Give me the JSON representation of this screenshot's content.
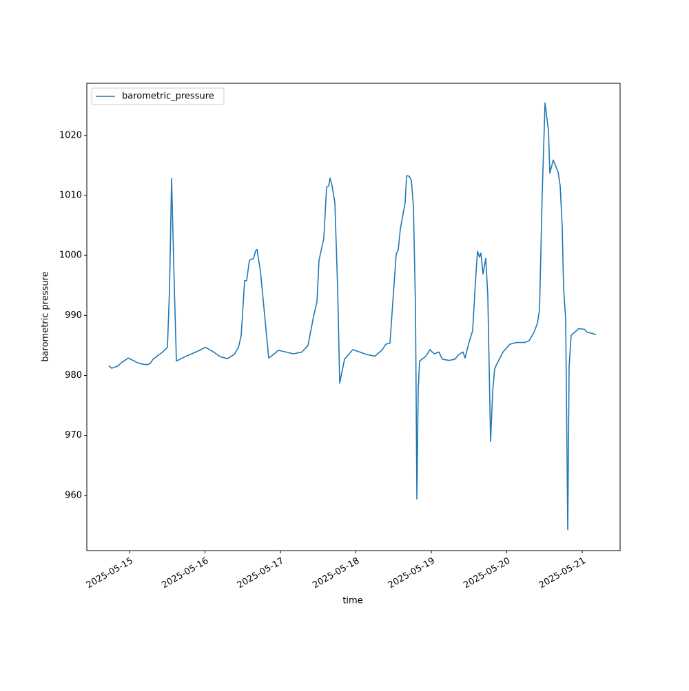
{
  "chart_data": {
    "type": "line",
    "xlabel": "time",
    "ylabel": "barometric pressure",
    "legend": "upper left",
    "xlim": [
      "2025-05-14 10:24",
      "2025-05-21 12:03"
    ],
    "xticks": [
      "2025-05-15",
      "2025-05-16",
      "2025-05-17",
      "2025-05-18",
      "2025-05-19",
      "2025-05-20",
      "2025-05-21"
    ],
    "ylim": [
      950.8,
      1028.7
    ],
    "yticks": [
      960,
      970,
      980,
      990,
      1000,
      1010,
      1020
    ],
    "x": [
      "2025-05-14 17:25",
      "2025-05-14 18:18",
      "2025-05-14 20:03",
      "2025-05-14 21:22",
      "2025-05-14 23:34",
      "2025-05-15 02:38",
      "2025-05-15 03:57",
      "2025-05-15 05:42",
      "2025-05-15 06:35",
      "2025-05-15 07:27",
      "2025-05-15 10:31",
      "2025-05-15 12:03",
      "2025-05-15 12:43",
      "2025-05-15 13:22",
      "2025-05-15 14:15",
      "2025-05-15 14:54",
      "2025-05-15 17:58",
      "2025-05-15 20:10",
      "2025-05-15 22:21",
      "2025-05-16 00:07",
      "2025-05-16 02:44",
      "2025-05-16 04:56",
      "2025-05-16 07:07",
      "2025-05-16 09:19",
      "2025-05-16 10:38",
      "2025-05-16 11:30",
      "2025-05-16 12:36",
      "2025-05-16 13:15",
      "2025-05-16 14:08",
      "2025-05-16 15:27",
      "2025-05-16 16:07",
      "2025-05-16 16:33",
      "2025-05-16 17:39",
      "2025-05-16 20:16",
      "2025-05-16 22:02",
      "2025-05-16 23:21",
      "2025-05-17 01:45",
      "2025-05-17 04:10",
      "2025-05-17 06:48",
      "2025-05-17 08:46",
      "2025-05-17 10:31",
      "2025-05-17 11:37",
      "2025-05-17 12:16",
      "2025-05-17 13:48",
      "2025-05-17 14:41",
      "2025-05-17 15:21",
      "2025-05-17 15:47",
      "2025-05-17 16:26",
      "2025-05-17 17:19",
      "2025-05-17 18:12",
      "2025-05-17 18:51",
      "2025-05-17 20:23",
      "2025-05-17 23:01",
      "2025-05-18 01:12",
      "2025-05-18 03:24",
      "2025-05-18 06:02",
      "2025-05-18 08:26",
      "2025-05-18 09:32",
      "2025-05-18 10:51",
      "2025-05-18 11:30",
      "2025-05-18 12:49",
      "2025-05-18 13:29",
      "2025-05-18 14:08",
      "2025-05-18 15:40",
      "2025-05-18 16:07",
      "2025-05-18 16:59",
      "2025-05-18 17:39",
      "2025-05-18 18:18",
      "2025-05-18 18:58",
      "2025-05-18 19:24",
      "2025-05-18 19:50",
      "2025-05-18 20:16",
      "2025-05-18 22:15",
      "2025-05-18 23:34",
      "2025-05-19 00:53",
      "2025-05-19 02:25",
      "2025-05-19 03:31",
      "2025-05-19 05:42",
      "2025-05-19 07:27",
      "2025-05-19 08:46",
      "2025-05-19 10:05",
      "2025-05-19 10:44",
      "2025-05-19 11:50",
      "2025-05-19 13:09",
      "2025-05-19 14:02",
      "2025-05-19 14:41",
      "2025-05-19 15:20",
      "2025-05-19 15:47",
      "2025-05-19 16:26",
      "2025-05-19 17:19",
      "2025-05-19 17:58",
      "2025-05-19 18:51",
      "2025-05-19 19:31",
      "2025-05-19 20:10",
      "2025-05-19 22:47",
      "2025-05-20 00:59",
      "2025-05-20 03:11",
      "2025-05-20 05:49",
      "2025-05-20 07:07",
      "2025-05-20 08:40",
      "2025-05-20 09:45",
      "2025-05-20 10:25",
      "2025-05-20 11:17",
      "2025-05-20 12:10",
      "2025-05-20 13:16",
      "2025-05-20 13:42",
      "2025-05-20 14:47",
      "2025-05-20 16:20",
      "2025-05-20 16:59",
      "2025-05-20 17:38",
      "2025-05-20 18:05",
      "2025-05-20 18:44",
      "2025-05-20 19:24",
      "2025-05-20 19:50",
      "2025-05-20 20:29",
      "2025-05-20 21:49",
      "2025-05-20 22:54",
      "2025-05-21 00:40",
      "2025-05-21 01:32",
      "2025-05-21 03:17",
      "2025-05-21 04:23"
    ],
    "series": [
      {
        "name": "barometric_pressure",
        "color": "#1f77b4",
        "values": [
          981.6,
          981.2,
          981.5,
          982.1,
          982.9,
          982.1,
          981.9,
          981.8,
          982.0,
          982.7,
          983.9,
          984.7,
          994.4,
          1012.8,
          994.4,
          982.4,
          983.2,
          983.7,
          984.2,
          984.7,
          983.9,
          983.1,
          982.8,
          983.5,
          984.7,
          986.6,
          995.8,
          995.8,
          999.2,
          999.5,
          1000.8,
          1001.0,
          997.3,
          982.9,
          983.6,
          984.2,
          983.9,
          983.6,
          983.9,
          985.0,
          989.8,
          992.3,
          999.2,
          1002.9,
          1011.4,
          1011.6,
          1012.9,
          1011.6,
          1008.8,
          994.4,
          978.7,
          982.7,
          984.3,
          983.9,
          983.5,
          983.2,
          984.3,
          985.2,
          985.4,
          990.4,
          1000.2,
          1001.0,
          1004.4,
          1008.8,
          1013.3,
          1013.2,
          1012.5,
          1008.2,
          991.0,
          959.4,
          977.7,
          982.4,
          983.2,
          984.3,
          983.6,
          983.9,
          982.7,
          982.5,
          982.7,
          983.5,
          983.9,
          982.9,
          985.2,
          987.5,
          995.6,
          1000.7,
          999.7,
          1000.4,
          996.9,
          999.5,
          993.3,
          969.0,
          977.4,
          981.2,
          983.9,
          985.2,
          985.5,
          985.5,
          985.8,
          987.2,
          988.7,
          991.0,
          1010.5,
          1025.4,
          1020.8,
          1013.7,
          1015.9,
          1013.9,
          1011.6,
          1004.7,
          994.4,
          989.5,
          954.3,
          981.5,
          986.7,
          987.3,
          987.8,
          987.7,
          987.2,
          987.0,
          986.8
        ]
      }
    ]
  }
}
